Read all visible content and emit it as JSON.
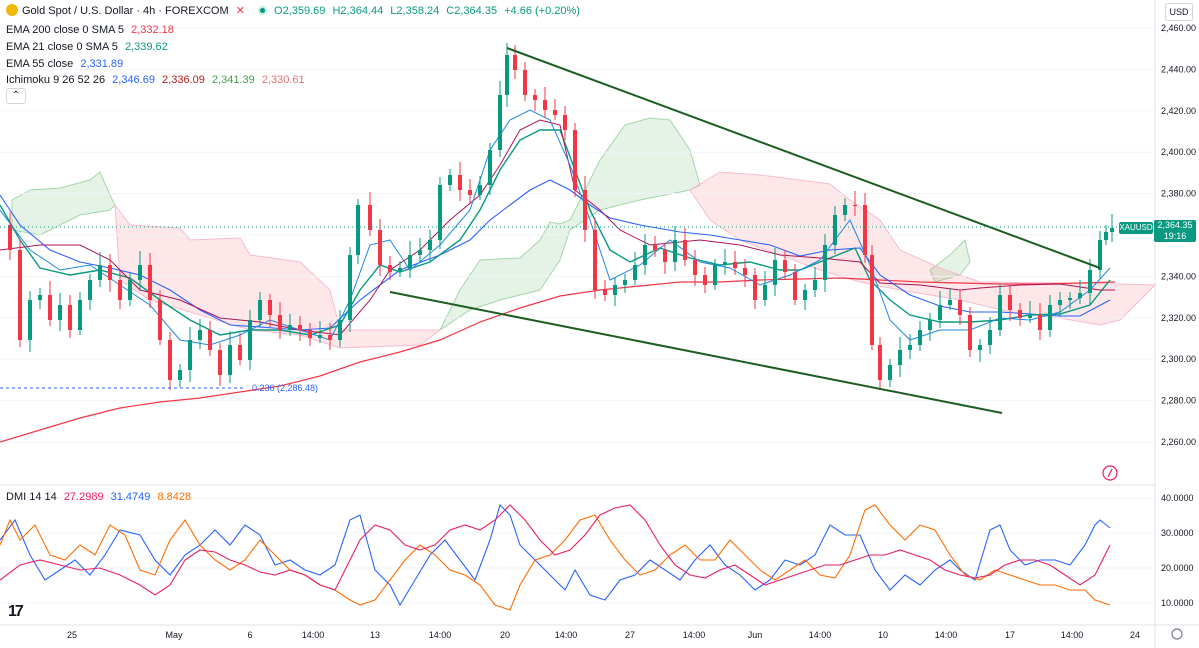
{
  "header": {
    "symbol_title": "Gold Spot / U.S. Dollar · 4h · FOREXCOM",
    "ohlc_o": "O2,359.69",
    "ohlc_h": "H2,364.44",
    "ohlc_l": "L2,358.24",
    "ohlc_c": "C2,364.35",
    "change": "+4.66 (+0.20%)"
  },
  "indicators": {
    "ema200_label": "EMA 200 close 0 SMA 5",
    "ema200_value": "2,332.18",
    "ema21_label": "EMA 21 close 0 SMA 5",
    "ema21_value": "2,339.62",
    "ema55_label": "EMA 55 close",
    "ema55_value": "2,331.89",
    "ichimoku_label": "Ichimoku 9 26 52 26",
    "ichimoku_v1": "2,346.69",
    "ichimoku_v2": "2,336.09",
    "ichimoku_v3": "2,341.39",
    "ichimoku_v4": "2,330.61",
    "collapse_glyph": "⌃"
  },
  "dmi": {
    "label": "DMI 14 14",
    "v1": "27.2989",
    "v2": "31.4749",
    "v3": "8.8428",
    "axis": [
      "40.0000",
      "30.0000",
      "20.0000",
      "10.0000"
    ]
  },
  "price_axis": {
    "currency": "USD",
    "ticks": [
      "2,460.00",
      "2,440.00",
      "2,420.00",
      "2,400.00",
      "2,380.00",
      "2,360.00",
      "2,340.00",
      "2,320.00",
      "2,300.00",
      "2,280.00",
      "2,260.00"
    ],
    "last_price": "2,364.35",
    "countdown": "19:16",
    "symbol_tag": "XAUUSD"
  },
  "fib": {
    "label": "0.236 (2,286.48)"
  },
  "time_axis": [
    "25",
    "May",
    "6",
    "14:00",
    "13",
    "14:00",
    "20",
    "14:00",
    "27",
    "14:00",
    "Jun",
    "14:00",
    "10",
    "14:00",
    "17",
    "14:00",
    "24"
  ],
  "logo": "17",
  "colors": {
    "up": "#089981",
    "down": "#f23645",
    "ema200": "#f23645",
    "ema21": "#089981",
    "ema55": "#2962ff",
    "trendline": "#1b5e20",
    "dmi_plus": "#2962ff",
    "dmi_minus": "#ff6d00",
    "adx": "#e91e63"
  }
}
